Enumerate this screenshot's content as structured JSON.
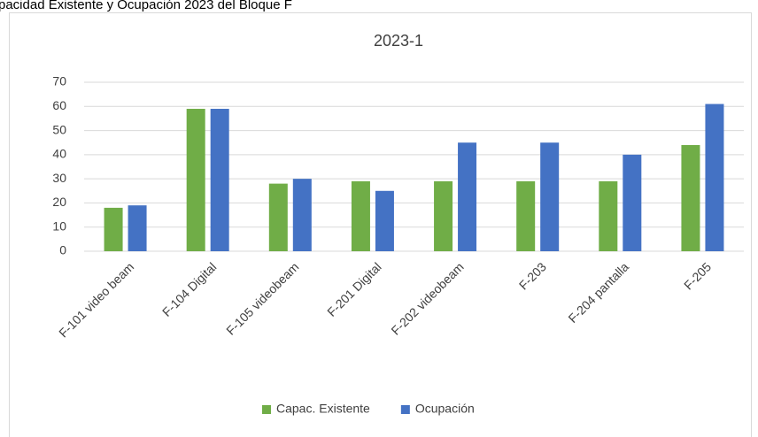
{
  "caption": "pacidad Existente y Ocupación 2023 del Bloque F",
  "chart_data": {
    "type": "bar",
    "title": "2023-1",
    "categories": [
      "F-101 video beam",
      "F-104 Digital",
      "F-105 videobeam",
      "F-201 Digital",
      "F-202 videobeam",
      "F-203",
      "F-204 pantalla",
      "F-205"
    ],
    "series": [
      {
        "name": "Capac. Existente",
        "color": "#70ad47",
        "values": [
          18,
          59,
          28,
          29,
          29,
          29,
          29,
          44
        ]
      },
      {
        "name": "Ocupación",
        "color": "#4472c4",
        "values": [
          19,
          59,
          30,
          25,
          45,
          45,
          40,
          61
        ]
      }
    ],
    "ylim": [
      0,
      70
    ],
    "yticks": [
      0,
      10,
      20,
      30,
      40,
      50,
      60,
      70
    ],
    "grid": true,
    "legend": "bottom"
  }
}
